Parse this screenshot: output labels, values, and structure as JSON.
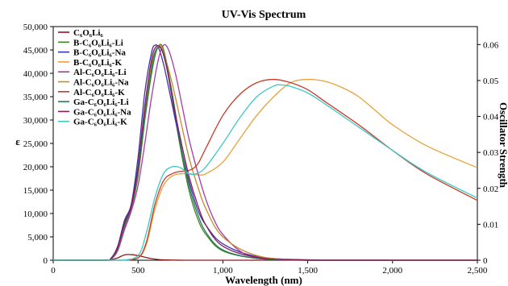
{
  "chart_data": {
    "type": "line",
    "title": "UV-Vis Spectrum",
    "xlabel": "Wavelength (nm)",
    "ylabel": "ε",
    "y2label": "Oscillator Strength",
    "xlim": [
      0,
      2500
    ],
    "ylim": [
      0,
      50000
    ],
    "y2lim": [
      0,
      0.065
    ],
    "x_ticks": [
      0,
      500,
      1000,
      1500,
      2000,
      2500
    ],
    "x_tick_labels": [
      "0",
      "500",
      "1,000",
      "1,500",
      "2,000",
      "2,500"
    ],
    "y_ticks": [
      0,
      5000,
      10000,
      15000,
      20000,
      25000,
      30000,
      35000,
      40000,
      45000,
      50000
    ],
    "y_tick_labels": [
      "0",
      "5,000",
      "10,000",
      "15,000",
      "20,000",
      "25,000",
      "30,000",
      "35,000",
      "40,000",
      "45,000",
      "50,000"
    ],
    "y2_ticks": [
      0,
      0.01,
      0.02,
      0.03,
      0.04,
      0.05,
      0.06
    ],
    "y2_tick_labels": [
      "0",
      "0.01",
      "0.02",
      "0.03",
      "0.04",
      "0.05",
      "0.06"
    ],
    "grid": false,
    "legend_position": "top-left",
    "series": [
      {
        "name": "C₆O₆Li₆",
        "color": "#8b1a1a",
        "x": [
          0,
          300,
          340,
          380,
          420,
          460,
          500,
          540,
          580,
          620,
          700,
          800,
          1000,
          1500,
          2000,
          2500
        ],
        "y": [
          0,
          0,
          100,
          500,
          1150,
          1200,
          1000,
          650,
          350,
          150,
          30,
          0,
          0,
          0,
          0,
          0
        ]
      },
      {
        "name": "B-C₆O₆Li₆-Li",
        "color": "#3a8a2a",
        "x": [
          0,
          300,
          340,
          380,
          420,
          460,
          500,
          540,
          580,
          610,
          640,
          670,
          700,
          750,
          800,
          850,
          900,
          1000,
          1200,
          1500,
          2000,
          2500
        ],
        "y": [
          0,
          0,
          300,
          2500,
          7000,
          11000,
          18000,
          30000,
          40000,
          45000,
          46000,
          42000,
          35000,
          24000,
          15000,
          9000,
          5500,
          2000,
          400,
          0,
          0,
          0
        ]
      },
      {
        "name": "B-C₆O₆Li₆-Na",
        "color": "#3a33a8",
        "x": [
          0,
          300,
          340,
          380,
          420,
          460,
          500,
          540,
          580,
          600,
          620,
          650,
          680,
          720,
          760,
          800,
          850,
          900,
          1000,
          1200,
          1500,
          2000,
          2500
        ],
        "y": [
          0,
          0,
          400,
          3000,
          8500,
          12000,
          22000,
          36000,
          44500,
          46000,
          45500,
          42000,
          37000,
          30000,
          23000,
          17000,
          11000,
          7500,
          3500,
          800,
          100,
          0,
          0
        ]
      },
      {
        "name": "B-C₆O₆Li₆-K",
        "color": "#e8a23a",
        "x": [
          0,
          300,
          400,
          500,
          550,
          600,
          650,
          700,
          750,
          800,
          850,
          900,
          1000,
          1100,
          1200,
          1300,
          1400,
          1500,
          1600,
          1700,
          1800,
          1900,
          2000,
          2200,
          2500
        ],
        "y": [
          0,
          0,
          0,
          500,
          3500,
          11000,
          16000,
          18000,
          18500,
          18500,
          18300,
          18500,
          21000,
          26000,
          31000,
          35000,
          38000,
          38700,
          38300,
          37000,
          35000,
          32000,
          29000,
          24500,
          19800
        ]
      },
      {
        "name": "Al-C₆O₆Li₆-Li",
        "color": "#a83aa8",
        "x": [
          0,
          300,
          340,
          380,
          420,
          460,
          500,
          540,
          580,
          620,
          650,
          680,
          720,
          760,
          800,
          850,
          900,
          950,
          1000,
          1100,
          1200,
          1500,
          2000,
          2500
        ],
        "y": [
          0,
          0,
          200,
          2000,
          6500,
          10500,
          16000,
          25000,
          35000,
          43000,
          46000,
          45000,
          40000,
          33000,
          26000,
          19000,
          13000,
          8500,
          5500,
          2000,
          700,
          0,
          0,
          0
        ]
      },
      {
        "name": "Al-C₆O₆Li₆-Na",
        "color": "#c88a2a",
        "x": [
          0,
          300,
          340,
          380,
          420,
          460,
          500,
          540,
          580,
          620,
          650,
          700,
          750,
          800,
          850,
          900,
          1000,
          1200,
          1500,
          2000,
          2500
        ],
        "y": [
          0,
          0,
          300,
          2500,
          7500,
          11500,
          19000,
          32000,
          42000,
          45800,
          44500,
          38000,
          30000,
          22000,
          16000,
          11000,
          5000,
          1000,
          0,
          0,
          0
        ]
      },
      {
        "name": "Al-C₆O₆Li₆-K",
        "color": "#c83a2a",
        "x": [
          0,
          300,
          400,
          500,
          550,
          600,
          650,
          700,
          750,
          800,
          850,
          900,
          1000,
          1100,
          1200,
          1300,
          1400,
          1500,
          1600,
          1800,
          2000,
          2200,
          2500
        ],
        "y": [
          0,
          0,
          0,
          500,
          4000,
          12000,
          17000,
          18500,
          19000,
          19200,
          20500,
          24000,
          31000,
          35500,
          38000,
          38700,
          38000,
          36500,
          34000,
          29000,
          23500,
          18500,
          12800
        ]
      },
      {
        "name": "Ga-C₆O₆Li₆-Li",
        "color": "#2a7a5a",
        "x": [
          0,
          300,
          340,
          380,
          420,
          460,
          500,
          540,
          580,
          600,
          630,
          660,
          700,
          750,
          800,
          850,
          900,
          1000,
          1200,
          1500,
          2000,
          2500
        ],
        "y": [
          0,
          0,
          300,
          2500,
          7500,
          11500,
          19000,
          31000,
          41000,
          44500,
          45500,
          43000,
          36000,
          25000,
          16000,
          10000,
          6000,
          2200,
          400,
          0,
          0,
          0
        ]
      },
      {
        "name": "Ga-C₆O₆Li₆-Na",
        "color": "#8a1a5a",
        "x": [
          0,
          300,
          340,
          380,
          420,
          460,
          500,
          540,
          580,
          610,
          640,
          670,
          700,
          750,
          800,
          850,
          900,
          1000,
          1200,
          1500,
          2000,
          2500
        ],
        "y": [
          0,
          0,
          350,
          2800,
          8000,
          11500,
          20000,
          33000,
          43000,
          45800,
          45000,
          41000,
          35000,
          26000,
          18000,
          12000,
          7500,
          3000,
          600,
          0,
          0,
          0
        ]
      },
      {
        "name": "Ga-C₆O₆Li₆-K",
        "color": "#3ac8c8",
        "x": [
          0,
          300,
          400,
          500,
          550,
          600,
          650,
          700,
          750,
          800,
          850,
          900,
          1000,
          1100,
          1200,
          1300,
          1350,
          1400,
          1500,
          1600,
          1800,
          2000,
          2200,
          2500
        ],
        "y": [
          0,
          0,
          0,
          1000,
          6000,
          13500,
          18500,
          20000,
          19800,
          18500,
          18600,
          20000,
          25000,
          30500,
          35000,
          37300,
          37500,
          37200,
          35800,
          33500,
          28500,
          23500,
          18800,
          13300
        ]
      }
    ]
  }
}
